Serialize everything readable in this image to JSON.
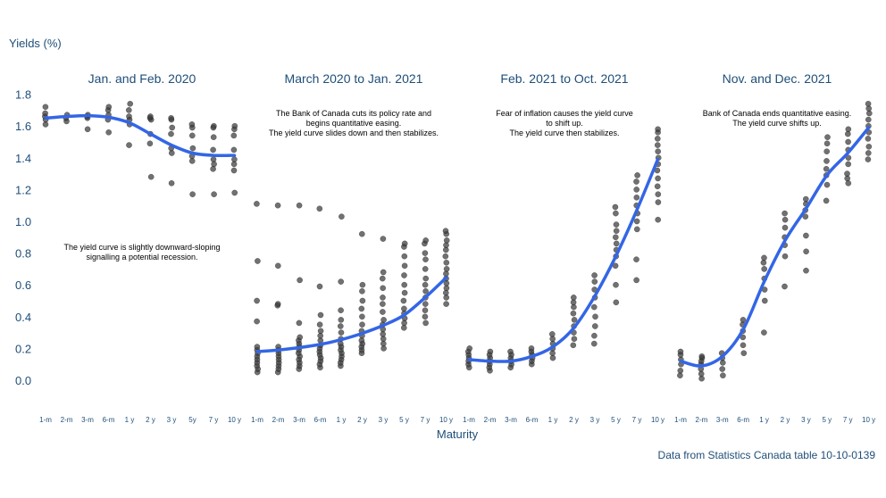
{
  "chart_data": {
    "type": "scatter",
    "ylabel": "Yields (%)",
    "xlabel": "Maturity",
    "source": "Data from Statistics Canada table 10-10-0139",
    "ylim": [
      -0.15,
      1.95
    ],
    "yticks": [
      "0.0",
      "0.2",
      "0.4",
      "0.6",
      "0.8",
      "1.0",
      "1.2",
      "1.4",
      "1.6",
      "1.8"
    ],
    "ytick_values": [
      0.0,
      0.2,
      0.4,
      0.6,
      0.8,
      1.0,
      1.2,
      1.4,
      1.6,
      1.8
    ],
    "grid": false,
    "colors": {
      "points": "#3a3a3a",
      "trend": "#3366e6",
      "text": "#1f4e79"
    },
    "panels": [
      {
        "title": "Jan. and Feb. 2020",
        "categories": [
          "1-m",
          "2-m",
          "3-m",
          "6-m",
          "1 y",
          "2 y",
          "3 y",
          "5y",
          "7 y",
          "10 y"
        ],
        "annotation": [
          "The yield curve is slightly downward-sloping",
          "signalling a potential recession."
        ],
        "points": [
          [
            1.61,
            1.64,
            1.66,
            1.68,
            1.72
          ],
          [
            1.63,
            1.65,
            1.67
          ],
          [
            1.58,
            1.65,
            1.66,
            1.67
          ],
          [
            1.56,
            1.64,
            1.67,
            1.7,
            1.72
          ],
          [
            1.48,
            1.61,
            1.64,
            1.66,
            1.7,
            1.74
          ],
          [
            1.28,
            1.49,
            1.55,
            1.64,
            1.65,
            1.66
          ],
          [
            1.24,
            1.43,
            1.46,
            1.55,
            1.59,
            1.64,
            1.65
          ],
          [
            1.17,
            1.38,
            1.41,
            1.46,
            1.54,
            1.59,
            1.61
          ],
          [
            1.17,
            1.33,
            1.36,
            1.39,
            1.45,
            1.53,
            1.59,
            1.6
          ],
          [
            1.18,
            1.32,
            1.36,
            1.39,
            1.45,
            1.54,
            1.58,
            1.6
          ]
        ],
        "trend": [
          1.65,
          1.66,
          1.665,
          1.655,
          1.62,
          1.55,
          1.48,
          1.43,
          1.415,
          1.415
        ]
      },
      {
        "title": "March 2020 to Jan. 2021",
        "categories": [
          "1-m",
          "2-m",
          "3-m",
          "6-m",
          "1 y",
          "2 y",
          "3 y",
          "5 y",
          "7 y",
          "10 y"
        ],
        "annotation": [
          "The Bank of Canada cuts its policy rate and",
          "begins quantitative easing.",
          "The  yield curve slides down and then stabilizes."
        ],
        "points": [
          [
            0.05,
            0.07,
            0.09,
            0.11,
            0.13,
            0.15,
            0.17,
            0.19,
            0.21,
            0.37,
            0.5,
            0.75,
            1.11
          ],
          [
            0.05,
            0.07,
            0.09,
            0.11,
            0.13,
            0.15,
            0.17,
            0.19,
            0.21,
            0.47,
            0.48,
            0.72,
            1.1
          ],
          [
            0.07,
            0.09,
            0.11,
            0.13,
            0.15,
            0.17,
            0.19,
            0.21,
            0.23,
            0.25,
            0.27,
            0.36,
            0.63,
            1.1
          ],
          [
            0.08,
            0.1,
            0.12,
            0.14,
            0.16,
            0.18,
            0.2,
            0.22,
            0.25,
            0.28,
            0.31,
            0.35,
            0.41,
            0.59,
            1.08
          ],
          [
            0.09,
            0.11,
            0.13,
            0.15,
            0.17,
            0.19,
            0.21,
            0.23,
            0.26,
            0.3,
            0.34,
            0.38,
            0.44,
            0.62,
            1.03
          ],
          [
            0.17,
            0.19,
            0.21,
            0.23,
            0.25,
            0.28,
            0.31,
            0.35,
            0.4,
            0.45,
            0.5,
            0.56,
            0.6,
            0.92
          ],
          [
            0.2,
            0.23,
            0.26,
            0.29,
            0.32,
            0.35,
            0.38,
            0.43,
            0.48,
            0.52,
            0.58,
            0.64,
            0.68,
            0.89
          ],
          [
            0.33,
            0.36,
            0.39,
            0.42,
            0.45,
            0.5,
            0.55,
            0.6,
            0.66,
            0.72,
            0.78,
            0.84,
            0.86
          ],
          [
            0.36,
            0.4,
            0.44,
            0.48,
            0.52,
            0.56,
            0.6,
            0.64,
            0.7,
            0.76,
            0.8,
            0.86,
            0.88
          ],
          [
            0.48,
            0.52,
            0.55,
            0.58,
            0.61,
            0.64,
            0.67,
            0.7,
            0.74,
            0.78,
            0.82,
            0.85,
            0.88,
            0.92,
            0.94
          ]
        ],
        "trend": [
          0.18,
          0.19,
          0.205,
          0.225,
          0.255,
          0.295,
          0.345,
          0.41,
          0.52,
          0.645
        ]
      },
      {
        "title": "Feb. 2021 to Oct. 2021",
        "categories": [
          "1-m",
          "2-m",
          "3-m",
          "6-m",
          "1 y",
          "2 y",
          "3 y",
          "5 y",
          "7 y",
          "10 y"
        ],
        "annotation": [
          "Fear of inflation causes the yield curve",
          "to shift up.",
          "The yield curve then stabilizes."
        ],
        "points": [
          [
            0.08,
            0.1,
            0.12,
            0.14,
            0.16,
            0.18,
            0.2
          ],
          [
            0.06,
            0.08,
            0.1,
            0.12,
            0.14,
            0.16,
            0.18
          ],
          [
            0.08,
            0.1,
            0.12,
            0.14,
            0.16,
            0.18
          ],
          [
            0.1,
            0.12,
            0.14,
            0.16,
            0.18,
            0.2
          ],
          [
            0.14,
            0.17,
            0.2,
            0.23,
            0.26,
            0.29
          ],
          [
            0.22,
            0.26,
            0.3,
            0.34,
            0.38,
            0.42,
            0.46,
            0.49,
            0.52
          ],
          [
            0.23,
            0.28,
            0.34,
            0.4,
            0.46,
            0.52,
            0.57,
            0.62,
            0.66
          ],
          [
            0.49,
            0.6,
            0.72,
            0.78,
            0.82,
            0.86,
            0.9,
            0.94,
            0.98,
            1.05,
            1.09
          ],
          [
            0.63,
            0.76,
            0.95,
            1.0,
            1.05,
            1.1,
            1.15,
            1.2,
            1.25,
            1.29
          ],
          [
            1.01,
            1.12,
            1.17,
            1.22,
            1.27,
            1.32,
            1.36,
            1.4,
            1.44,
            1.48,
            1.52,
            1.56,
            1.58
          ]
        ],
        "trend": [
          0.13,
          0.12,
          0.12,
          0.15,
          0.21,
          0.33,
          0.53,
          0.78,
          1.07,
          1.39
        ]
      },
      {
        "title": "Nov. and Dec. 2021",
        "categories": [
          "1-m",
          "2-m",
          "3-m",
          "6-m",
          "1 y",
          "2 y",
          "3 y",
          "5 y",
          "7 y",
          "10 y"
        ],
        "annotation": [
          "Bank of Canada ends quantitative easing.",
          "The yield curve shifts up."
        ],
        "points": [
          [
            0.03,
            0.06,
            0.1,
            0.13,
            0.16,
            0.18
          ],
          [
            0.01,
            0.04,
            0.07,
            0.1,
            0.12,
            0.14,
            0.15
          ],
          [
            0.03,
            0.07,
            0.11,
            0.14,
            0.17
          ],
          [
            0.17,
            0.22,
            0.27,
            0.31,
            0.35,
            0.38
          ],
          [
            0.3,
            0.5,
            0.57,
            0.64,
            0.7,
            0.74,
            0.77
          ],
          [
            0.59,
            0.78,
            0.85,
            0.9,
            0.96,
            1.01,
            1.05
          ],
          [
            0.69,
            0.81,
            0.91,
            1.03,
            1.07,
            1.11,
            1.14
          ],
          [
            1.13,
            1.23,
            1.29,
            1.33,
            1.38,
            1.44,
            1.49,
            1.53
          ],
          [
            1.24,
            1.27,
            1.3,
            1.36,
            1.4,
            1.45,
            1.5,
            1.55,
            1.58
          ],
          [
            1.39,
            1.43,
            1.47,
            1.52,
            1.56,
            1.6,
            1.64,
            1.68,
            1.71,
            1.74
          ]
        ],
        "trend": [
          0.12,
          0.09,
          0.15,
          0.32,
          0.62,
          0.88,
          1.08,
          1.29,
          1.43,
          1.59
        ]
      }
    ]
  }
}
